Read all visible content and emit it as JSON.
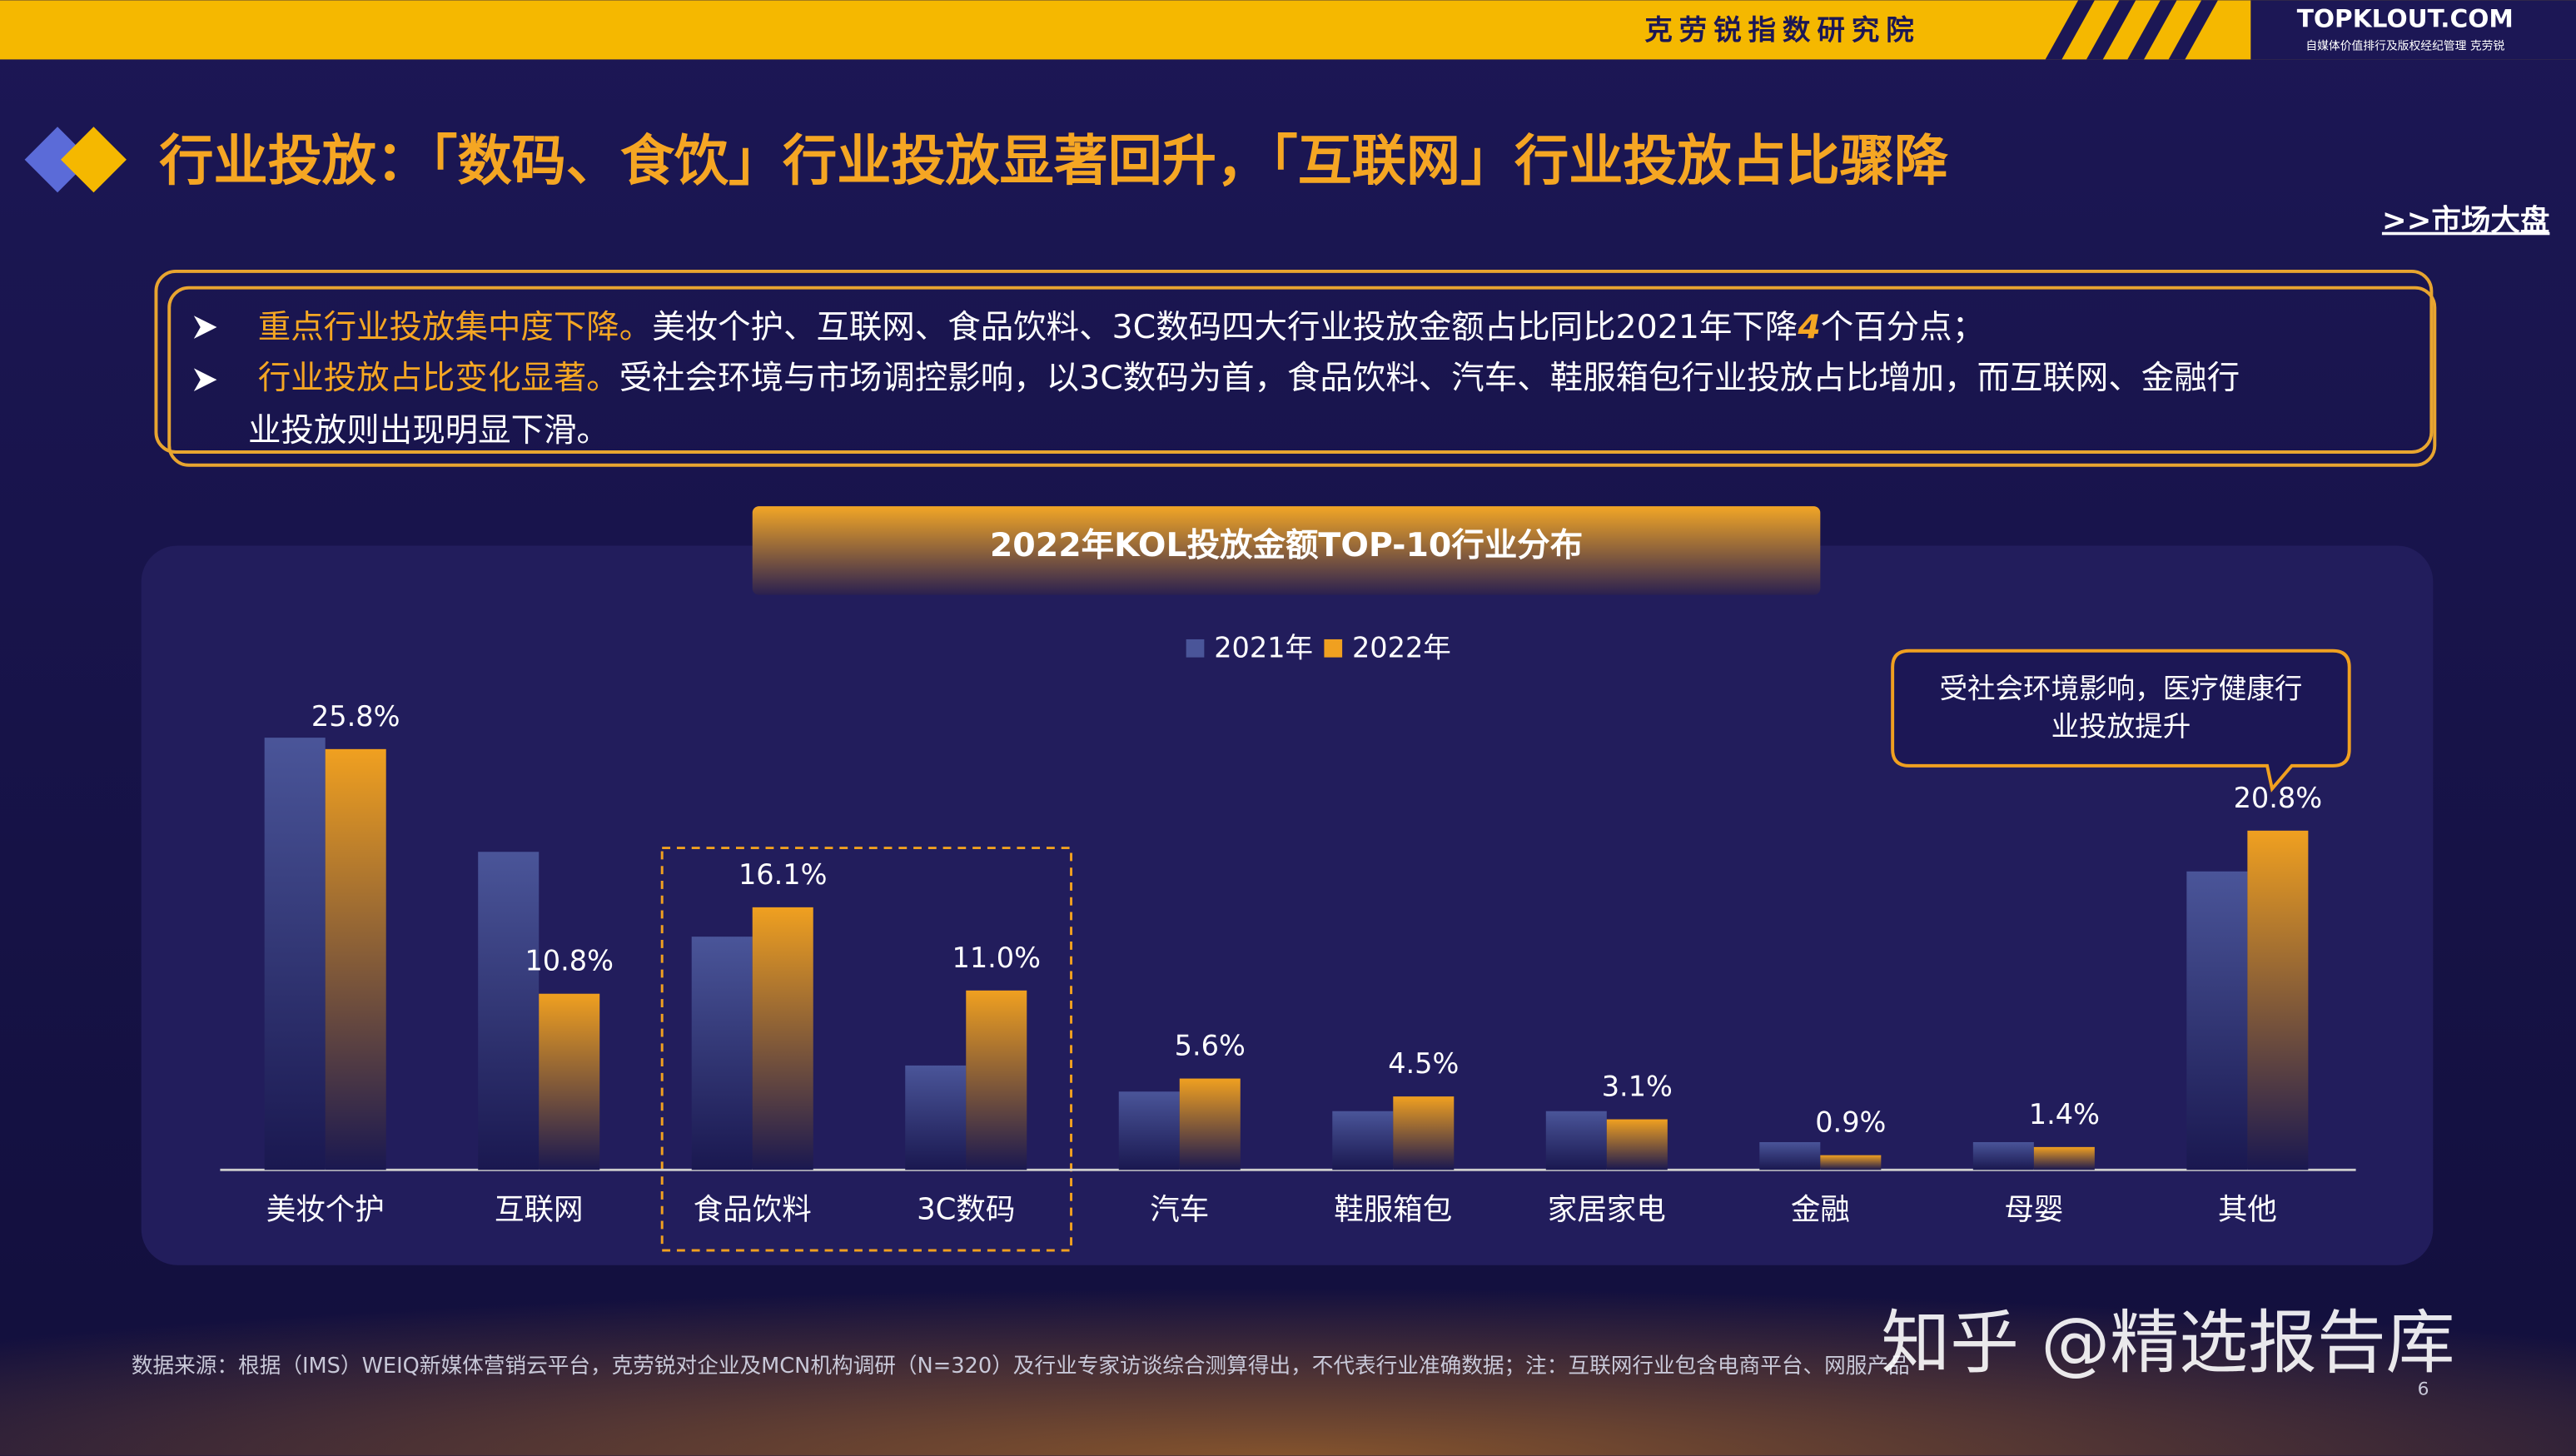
{
  "header": {
    "org": "克劳锐指数研究院",
    "logo": "TOPKLOUT.COM",
    "logo_sub": "自媒体价值排行及版权经纪管理 克劳锐"
  },
  "title": "行业投放：「数码、食饮」行业投放显著回升，「互联网」行业投放占比骤降",
  "nav_link": ">>市场大盘",
  "bullets": [
    {
      "highlight": "重点行业投放集中度下降。",
      "text": "美妆个护、互联网、食品饮料、3C数码四大行业投放金额占比同比2021年下降",
      "emphasis": "4",
      "tail": "个百分点；"
    },
    {
      "highlight": "行业投放占比变化显著。",
      "lines": [
        "受社会环境与市场调控影响，以3C数码为首，食品饮料、汽车、鞋服箱包行业投放占比增加，而互联网、金融行",
        "业投放则出现明显下滑。"
      ]
    }
  ],
  "chart_data": {
    "type": "bar",
    "title": "2022年KOL投放金额TOP-10行业分布",
    "categories": [
      "美妆个护",
      "互联网",
      "食品饮料",
      "3C数码",
      "汽车",
      "鞋服箱包",
      "家居家电",
      "金融",
      "母婴",
      "其他"
    ],
    "series": [
      {
        "name": "2021年",
        "color": "#4a5599",
        "values": [
          26.5,
          19.5,
          14.3,
          6.4,
          4.8,
          3.6,
          3.6,
          1.7,
          1.7,
          18.3
        ]
      },
      {
        "name": "2022年",
        "color": "#f0a020",
        "values": [
          25.8,
          10.8,
          16.1,
          11.0,
          5.6,
          4.5,
          3.1,
          0.9,
          1.4,
          20.8
        ],
        "value_labels": [
          "25.8%",
          "10.8%",
          "16.1%",
          "11.0%",
          "5.6%",
          "4.5%",
          "3.1%",
          "0.9%",
          "1.4%",
          "20.8%"
        ]
      }
    ],
    "ylim": [
      0,
      28
    ],
    "legend": "top",
    "annotation": [
      "受社会环境影响，医疗健康行",
      "业投放提升"
    ]
  },
  "source": "数据来源：根据（IMS）WEIQ新媒体营销云平台，克劳锐对企业及MCN机构调研（N=320）及行业专家访谈综合测算得出，不代表行业准确数据；注：互联网行业包含电商平台、网服产品",
  "page": 6,
  "watermark": "知乎 @精选报告库"
}
